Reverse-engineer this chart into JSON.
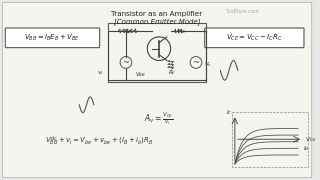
{
  "bg_color": "#e8e8e8",
  "title_line1": "Transistor as an Amplifier",
  "title_line2": "[Common Emitter Mode]",
  "title_color": "#222222",
  "title_fontsize": 5.5,
  "border_color": "#888888",
  "text_color": "#333333",
  "eq_left": "V_BB = I_B E_B + V_BE",
  "eq_right": "V_CE = V_CC - I_C R_C",
  "eq_bottom": "V_BB + v_i = V_be + v_be + (I_B + i_b) R_B",
  "eq_av": "A_v = V_CE / v_i",
  "watermark": "TuoBlaze.com",
  "inner_bg": "#f5f5f0"
}
